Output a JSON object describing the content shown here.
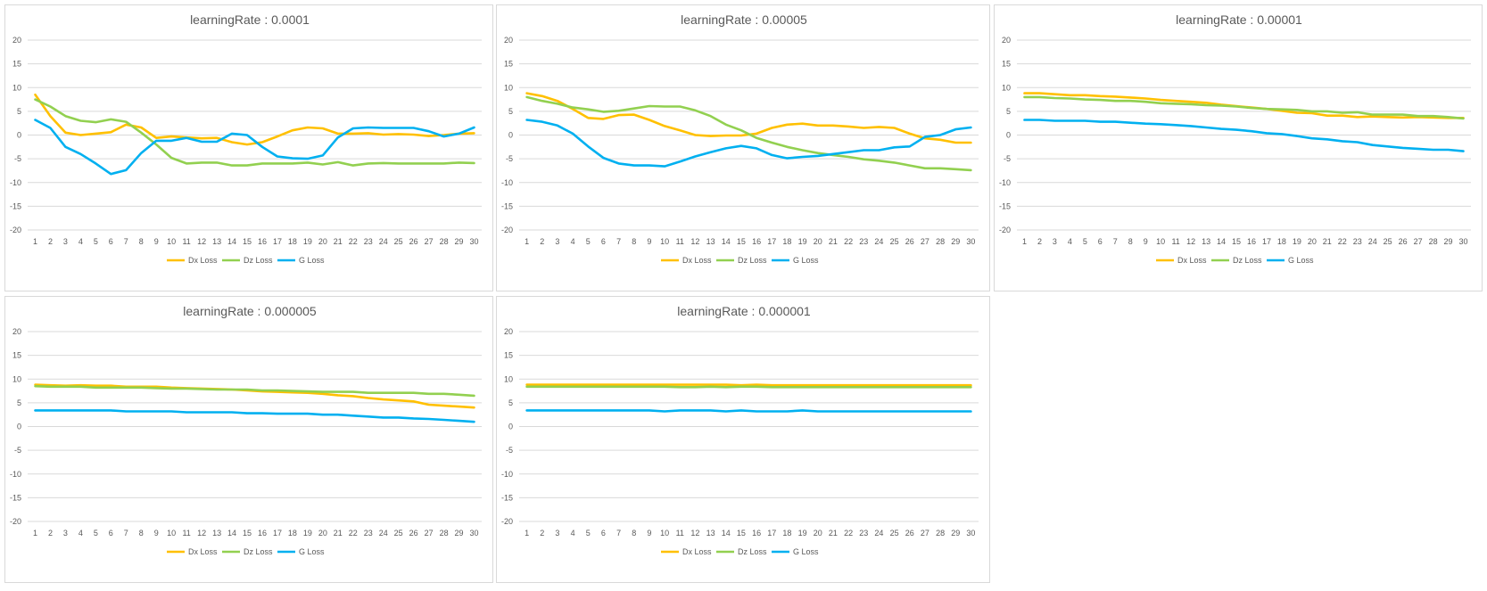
{
  "chart_data": [
    {
      "type": "line",
      "title": "learningRate : 0.0001",
      "categories": [
        "1",
        "2",
        "3",
        "4",
        "5",
        "6",
        "7",
        "8",
        "9",
        "10",
        "11",
        "12",
        "13",
        "14",
        "15",
        "16",
        "17",
        "18",
        "19",
        "20",
        "21",
        "22",
        "23",
        "24",
        "25",
        "26",
        "27",
        "28",
        "29",
        "30"
      ],
      "ylim": [
        -20,
        20
      ],
      "yticks": [
        -20,
        -15,
        -10,
        -5,
        0,
        5,
        10,
        15,
        20
      ],
      "grid": true,
      "legend_position": "bottom",
      "series": [
        {
          "name": "Dx Loss",
          "color": "#FFC000",
          "values": [
            8.5,
            4,
            0.5,
            0,
            0.3,
            0.6,
            2.2,
            1.6,
            -0.6,
            -0.3,
            -0.5,
            -0.7,
            -0.6,
            -1.5,
            -2,
            -1.5,
            -0.3,
            1,
            1.6,
            1.4,
            0.3,
            0.3,
            0.4,
            0.1,
            0.2,
            0.1,
            -0.2,
            0,
            0.3,
            0.4
          ]
        },
        {
          "name": "Dz Loss",
          "color": "#92D050",
          "values": [
            7.5,
            6,
            4,
            3,
            2.7,
            3.3,
            2.8,
            0.5,
            -2,
            -4.8,
            -6,
            -5.8,
            -5.8,
            -6.4,
            -6.4,
            -6,
            -6,
            -6,
            -5.8,
            -6.2,
            -5.7,
            -6.4,
            -6,
            -5.9,
            -6,
            -6,
            -6,
            -6,
            -5.8,
            -5.9
          ]
        },
        {
          "name": "G Loss",
          "color": "#00B0F0",
          "values": [
            3.2,
            1.5,
            -2.5,
            -4,
            -6,
            -8.2,
            -7.4,
            -3.8,
            -1.2,
            -1.2,
            -0.6,
            -1.4,
            -1.4,
            0.3,
            0,
            -2.5,
            -4.5,
            -4.9,
            -5,
            -4.3,
            -0.5,
            1.4,
            1.6,
            1.5,
            1.5,
            1.5,
            0.8,
            -0.3,
            0.3,
            1.6
          ]
        }
      ]
    },
    {
      "type": "line",
      "title": "learningRate : 0.00005",
      "categories": [
        "1",
        "2",
        "3",
        "4",
        "5",
        "6",
        "7",
        "8",
        "9",
        "10",
        "11",
        "12",
        "13",
        "14",
        "15",
        "16",
        "17",
        "18",
        "19",
        "20",
        "21",
        "22",
        "23",
        "24",
        "25",
        "26",
        "27",
        "28",
        "29",
        "30"
      ],
      "ylim": [
        -20,
        20
      ],
      "yticks": [
        -20,
        -15,
        -10,
        -5,
        0,
        5,
        10,
        15,
        20
      ],
      "grid": true,
      "legend_position": "bottom",
      "series": [
        {
          "name": "Dx Loss",
          "color": "#FFC000",
          "values": [
            8.8,
            8.2,
            7.2,
            5.5,
            3.6,
            3.4,
            4.2,
            4.3,
            3.2,
            1.9,
            1,
            0,
            -0.2,
            -0.1,
            -0.1,
            0.3,
            1.5,
            2.2,
            2.4,
            2,
            2,
            1.8,
            1.5,
            1.7,
            1.5,
            0.3,
            -0.7,
            -1,
            -1.6,
            -1.6
          ]
        },
        {
          "name": "Dz Loss",
          "color": "#92D050",
          "values": [
            8,
            7.2,
            6.6,
            5.8,
            5.4,
            4.9,
            5.1,
            5.6,
            6.1,
            6,
            6,
            5.2,
            4,
            2.2,
            1,
            -0.6,
            -1.6,
            -2.5,
            -3.2,
            -3.8,
            -4.2,
            -4.6,
            -5.1,
            -5.4,
            -5.8,
            -6.4,
            -7,
            -7,
            -7.2,
            -7.4
          ]
        },
        {
          "name": "G Loss",
          "color": "#00B0F0",
          "values": [
            3.2,
            2.8,
            2,
            0.3,
            -2.4,
            -4.8,
            -6,
            -6.4,
            -6.4,
            -6.6,
            -5.6,
            -4.5,
            -3.6,
            -2.8,
            -2.3,
            -2.8,
            -4.2,
            -4.9,
            -4.6,
            -4.4,
            -4,
            -3.6,
            -3.2,
            -3.2,
            -2.6,
            -2.4,
            -0.4,
            0,
            1.2,
            1.6
          ]
        }
      ]
    },
    {
      "type": "line",
      "title": "learningRate : 0.00001",
      "categories": [
        "1",
        "2",
        "3",
        "4",
        "5",
        "6",
        "7",
        "8",
        "9",
        "10",
        "11",
        "12",
        "13",
        "14",
        "15",
        "16",
        "17",
        "18",
        "19",
        "20",
        "21",
        "22",
        "23",
        "24",
        "25",
        "26",
        "27",
        "28",
        "29",
        "30"
      ],
      "ylim": [
        -20,
        20
      ],
      "yticks": [
        -20,
        -15,
        -10,
        -5,
        0,
        5,
        10,
        15,
        20
      ],
      "grid": true,
      "legend_position": "bottom",
      "series": [
        {
          "name": "Dx Loss",
          "color": "#FFC000",
          "values": [
            8.8,
            8.8,
            8.6,
            8.4,
            8.4,
            8.2,
            8.1,
            7.9,
            7.7,
            7.4,
            7.2,
            7,
            6.8,
            6.4,
            6.1,
            5.8,
            5.5,
            5.1,
            4.7,
            4.6,
            4.1,
            4.1,
            3.8,
            3.9,
            3.8,
            3.7,
            3.8,
            3.7,
            3.6,
            3.6
          ]
        },
        {
          "name": "Dz Loss",
          "color": "#92D050",
          "values": [
            8,
            8,
            7.8,
            7.7,
            7.5,
            7.4,
            7.2,
            7.2,
            7,
            6.7,
            6.6,
            6.5,
            6.3,
            6.2,
            6,
            5.7,
            5.5,
            5.4,
            5.3,
            5,
            5,
            4.7,
            4.8,
            4.3,
            4.3,
            4.3,
            4,
            4,
            3.8,
            3.5
          ]
        },
        {
          "name": "G Loss",
          "color": "#00B0F0",
          "values": [
            3.2,
            3.2,
            3,
            3,
            3,
            2.8,
            2.8,
            2.6,
            2.4,
            2.3,
            2.1,
            1.9,
            1.6,
            1.3,
            1.1,
            0.8,
            0.4,
            0.2,
            -0.2,
            -0.7,
            -0.9,
            -1.3,
            -1.5,
            -2.1,
            -2.4,
            -2.7,
            -2.9,
            -3.1,
            -3.1,
            -3.4
          ]
        }
      ]
    },
    {
      "type": "line",
      "title": "learningRate : 0.000005",
      "categories": [
        "1",
        "2",
        "3",
        "4",
        "5",
        "6",
        "7",
        "8",
        "9",
        "10",
        "11",
        "12",
        "13",
        "14",
        "15",
        "16",
        "17",
        "18",
        "19",
        "20",
        "21",
        "22",
        "23",
        "24",
        "25",
        "26",
        "27",
        "28",
        "29",
        "30"
      ],
      "ylim": [
        -20,
        20
      ],
      "yticks": [
        -20,
        -15,
        -10,
        -5,
        0,
        5,
        10,
        15,
        20
      ],
      "grid": true,
      "legend_position": "bottom",
      "series": [
        {
          "name": "Dx Loss",
          "color": "#FFC000",
          "values": [
            8.8,
            8.7,
            8.6,
            8.7,
            8.6,
            8.6,
            8.4,
            8.4,
            8.4,
            8.2,
            8.1,
            8,
            7.9,
            7.8,
            7.6,
            7.4,
            7.3,
            7.2,
            7.1,
            6.9,
            6.6,
            6.4,
            6,
            5.7,
            5.5,
            5.3,
            4.6,
            4.4,
            4.2,
            4
          ]
        },
        {
          "name": "Dz Loss",
          "color": "#92D050",
          "values": [
            8.5,
            8.4,
            8.4,
            8.4,
            8.2,
            8.2,
            8.2,
            8.2,
            8.1,
            8,
            8,
            7.9,
            7.8,
            7.8,
            7.8,
            7.6,
            7.6,
            7.5,
            7.4,
            7.3,
            7.3,
            7.3,
            7.1,
            7.1,
            7.1,
            7.1,
            6.9,
            6.9,
            6.7,
            6.5
          ]
        },
        {
          "name": "G Loss",
          "color": "#00B0F0",
          "values": [
            3.4,
            3.4,
            3.4,
            3.4,
            3.4,
            3.4,
            3.2,
            3.2,
            3.2,
            3.2,
            3,
            3,
            3,
            3,
            2.8,
            2.8,
            2.7,
            2.7,
            2.7,
            2.5,
            2.5,
            2.3,
            2.1,
            1.9,
            1.9,
            1.7,
            1.6,
            1.4,
            1.2,
            1
          ]
        }
      ]
    },
    {
      "type": "line",
      "title": "learningRate : 0.000001",
      "categories": [
        "1",
        "2",
        "3",
        "4",
        "5",
        "6",
        "7",
        "8",
        "9",
        "10",
        "11",
        "12",
        "13",
        "14",
        "15",
        "16",
        "17",
        "18",
        "19",
        "20",
        "21",
        "22",
        "23",
        "24",
        "25",
        "26",
        "27",
        "28",
        "29",
        "30"
      ],
      "ylim": [
        -20,
        20
      ],
      "yticks": [
        -20,
        -15,
        -10,
        -5,
        0,
        5,
        10,
        15,
        20
      ],
      "grid": true,
      "legend_position": "bottom",
      "series": [
        {
          "name": "Dx Loss",
          "color": "#FFC000",
          "values": [
            8.8,
            8.8,
            8.8,
            8.8,
            8.8,
            8.8,
            8.8,
            8.8,
            8.8,
            8.8,
            8.8,
            8.8,
            8.8,
            8.8,
            8.7,
            8.8,
            8.7,
            8.7,
            8.7,
            8.7,
            8.7,
            8.7,
            8.7,
            8.7,
            8.7,
            8.7,
            8.7,
            8.7,
            8.7,
            8.7
          ]
        },
        {
          "name": "Dz Loss",
          "color": "#92D050",
          "values": [
            8.4,
            8.4,
            8.4,
            8.4,
            8.4,
            8.4,
            8.4,
            8.4,
            8.4,
            8.4,
            8.3,
            8.3,
            8.4,
            8.3,
            8.4,
            8.4,
            8.3,
            8.3,
            8.3,
            8.3,
            8.3,
            8.3,
            8.3,
            8.3,
            8.3,
            8.3,
            8.3,
            8.3,
            8.3,
            8.3
          ]
        },
        {
          "name": "G Loss",
          "color": "#00B0F0",
          "values": [
            3.4,
            3.4,
            3.4,
            3.4,
            3.4,
            3.4,
            3.4,
            3.4,
            3.4,
            3.2,
            3.4,
            3.4,
            3.4,
            3.2,
            3.4,
            3.2,
            3.2,
            3.2,
            3.4,
            3.2,
            3.2,
            3.2,
            3.2,
            3.2,
            3.2,
            3.2,
            3.2,
            3.2,
            3.2,
            3.2
          ]
        }
      ]
    }
  ]
}
